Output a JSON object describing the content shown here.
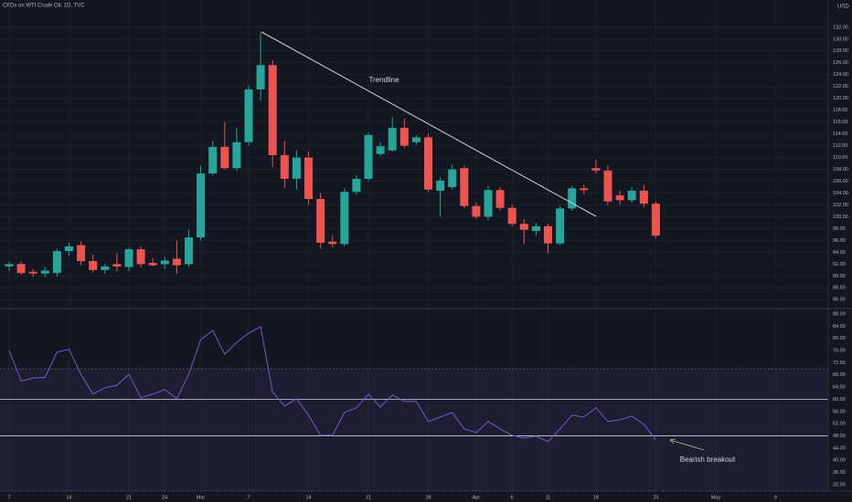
{
  "chart_data": [
    {
      "type": "candlestick",
      "title": "CFDs on WTI Crude Oil, 1D, TVC",
      "currency": "USD",
      "categories": [
        "7",
        null,
        null,
        null,
        null,
        "14",
        null,
        null,
        null,
        null,
        "21",
        null,
        null,
        "24",
        null,
        null,
        "Mar",
        null,
        null,
        null,
        "7",
        null,
        null,
        null,
        null,
        "14",
        null,
        null,
        null,
        null,
        "21",
        null,
        null,
        null,
        null,
        "28",
        null,
        null,
        null,
        "Apr",
        null,
        null,
        "6",
        null,
        null,
        "11",
        null,
        null,
        null,
        "18",
        null,
        null,
        null,
        null,
        "25",
        null,
        null,
        null,
        null,
        "May",
        null,
        null,
        null,
        null,
        "9"
      ],
      "open": [
        91.6,
        92.0,
        90.7,
        90.4,
        90.5,
        94.2,
        95.2,
        92.5,
        91.0,
        92.0,
        91.5,
        94.5,
        92.2,
        92.0,
        92.9,
        92.0,
        96.5,
        107.3,
        111.8,
        108.2,
        112.6,
        121.5,
        125.6,
        110.4,
        106.4,
        110.0,
        103.0,
        95.8,
        95.4,
        104.2,
        106.4,
        110.6,
        111.2,
        115.0,
        112.6,
        113.4,
        104.4,
        105.0,
        108.2,
        101.8,
        100.0,
        104.5,
        101.5,
        98.8,
        97.6,
        98.4,
        95.5,
        101.4,
        104.8,
        108.2,
        107.8,
        103.6,
        102.8,
        104.4,
        102.2,
        null,
        null,
        null,
        null,
        null,
        null,
        null,
        null,
        null,
        null
      ],
      "high": [
        92.4,
        92.4,
        91.2,
        91.5,
        94.6,
        95.6,
        95.8,
        93.6,
        92.0,
        93.8,
        94.8,
        95.0,
        93.0,
        93.2,
        96.0,
        97.8,
        108.6,
        112.8,
        116.0,
        115.0,
        122.2,
        131.1,
        126.4,
        112.8,
        111.2,
        111.0,
        104.0,
        96.8,
        104.8,
        107.0,
        114.2,
        112.6,
        116.8,
        116.6,
        113.8,
        114.0,
        106.6,
        108.8,
        108.6,
        102.4,
        105.2,
        105.0,
        102.0,
        99.6,
        99.0,
        98.8,
        101.8,
        105.2,
        105.4,
        109.6,
        108.6,
        104.4,
        105.0,
        105.4,
        102.6,
        null,
        null,
        null,
        null,
        null,
        null,
        null,
        null,
        null,
        null
      ],
      "low": [
        90.8,
        90.2,
        89.8,
        89.8,
        89.9,
        93.4,
        91.8,
        90.6,
        90.4,
        90.8,
        90.8,
        91.4,
        91.6,
        91.2,
        90.4,
        91.6,
        96.0,
        107.0,
        108.0,
        107.8,
        112.0,
        119.6,
        108.4,
        104.8,
        104.6,
        102.0,
        94.6,
        94.8,
        95.0,
        103.8,
        106.0,
        110.2,
        111.0,
        111.6,
        112.2,
        104.2,
        100.0,
        104.6,
        101.4,
        99.6,
        99.4,
        101.0,
        98.4,
        95.4,
        96.8,
        93.8,
        95.2,
        101.0,
        103.8,
        107.4,
        102.0,
        102.0,
        102.4,
        101.6,
        96.4,
        null,
        null,
        null,
        null,
        null,
        null,
        null,
        null,
        null,
        null
      ],
      "close": [
        92.0,
        90.5,
        90.4,
        90.9,
        94.2,
        95.0,
        92.5,
        91.0,
        91.6,
        91.6,
        94.5,
        92.0,
        91.8,
        92.6,
        91.8,
        96.5,
        107.3,
        111.8,
        108.2,
        112.6,
        121.5,
        125.6,
        110.4,
        106.4,
        110.0,
        103.0,
        95.6,
        95.4,
        104.2,
        106.4,
        113.8,
        111.9,
        115.0,
        112.0,
        113.4,
        104.6,
        106.1,
        108.0,
        101.8,
        100.0,
        104.5,
        101.5,
        98.8,
        97.8,
        98.4,
        95.5,
        101.4,
        104.8,
        104.5,
        107.8,
        102.6,
        102.8,
        104.4,
        102.2,
        96.8,
        null,
        null,
        null,
        null,
        null,
        null,
        null,
        null,
        null,
        null
      ],
      "up_color": "#26a69a",
      "down_color": "#ef5350",
      "ylim": [
        84.5,
        136.6
      ],
      "yticks": [
        {
          "value": 86,
          "label": "86.00"
        },
        {
          "value": 88,
          "label": "88.00"
        },
        {
          "value": 90,
          "label": "90.00"
        },
        {
          "value": 92,
          "label": "92.00"
        },
        {
          "value": 94,
          "label": "94.00"
        },
        {
          "value": 96,
          "label": "96.00"
        },
        {
          "value": 98,
          "label": "98.00"
        },
        {
          "value": 100,
          "label": "100.00"
        },
        {
          "value": 102,
          "label": "102.00"
        },
        {
          "value": 104,
          "label": "104.00"
        },
        {
          "value": 106,
          "label": "106.00"
        },
        {
          "value": 108,
          "label": "108.00"
        },
        {
          "value": 110,
          "label": "110.00"
        },
        {
          "value": 112,
          "label": "112.00"
        },
        {
          "value": 114,
          "label": "114.00"
        },
        {
          "value": 116,
          "label": "116.00"
        },
        {
          "value": 118,
          "label": "118.00"
        },
        {
          "value": 120,
          "label": "120.00"
        },
        {
          "value": 122,
          "label": "122.00"
        },
        {
          "value": 124,
          "label": "124.00"
        },
        {
          "value": 126,
          "label": "126.00"
        },
        {
          "value": 128,
          "label": "128.00"
        },
        {
          "value": 130,
          "label": "130.00"
        },
        {
          "value": 132,
          "label": "132.00"
        }
      ],
      "grid": true,
      "annotations": [
        {
          "text": "Trendline"
        }
      ]
    },
    {
      "type": "line",
      "values": [
        76.0,
        66.0,
        67.0,
        67.2,
        75.5,
        76.4,
        68.2,
        61.7,
        63.8,
        64.6,
        68.2,
        60.5,
        61.7,
        63.2,
        60.2,
        68.2,
        79.6,
        82.6,
        74.8,
        78.7,
        81.7,
        83.8,
        62.3,
        57.8,
        60.2,
        54.8,
        48.2,
        48.2,
        55.7,
        57.2,
        61.7,
        57.5,
        61.4,
        59.3,
        59.3,
        52.7,
        54.2,
        55.7,
        50.3,
        49.1,
        52.7,
        50.3,
        48.2,
        47.3,
        47.9,
        46.1,
        50.3,
        54.8,
        54.2,
        57.2,
        52.7,
        53.3,
        54.5,
        51.8,
        46.7,
        null,
        null,
        null,
        null,
        null,
        null,
        null,
        null,
        null,
        null
      ],
      "color": "#7e57c2",
      "ylim": [
        29.9,
        89.8
      ],
      "yticks": [
        {
          "value": 32,
          "label": "32.00"
        },
        {
          "value": 36,
          "label": "36.00"
        },
        {
          "value": 40,
          "label": "40.00"
        },
        {
          "value": 44,
          "label": "44.00"
        },
        {
          "value": 48,
          "label": "48.00"
        },
        {
          "value": 52,
          "label": "52.00"
        },
        {
          "value": 56,
          "label": "56.00"
        },
        {
          "value": 60,
          "label": "60.00"
        },
        {
          "value": 64,
          "label": "64.00"
        },
        {
          "value": 68,
          "label": "68.00"
        },
        {
          "value": 72,
          "label": "72.00"
        },
        {
          "value": 76,
          "label": "76.00"
        },
        {
          "value": 80,
          "label": "80.00"
        },
        {
          "value": 84,
          "label": "84.00"
        },
        {
          "value": 88,
          "label": "88.00"
        }
      ],
      "band": [
        30,
        70
      ],
      "hlines": [
        60,
        48
      ],
      "annotations": [
        {
          "text": "Bearish breakout"
        }
      ]
    }
  ]
}
